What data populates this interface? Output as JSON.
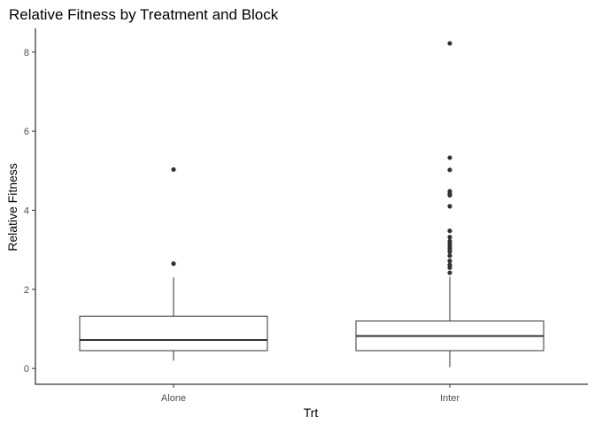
{
  "chart_data": {
    "type": "boxplot",
    "title": "Relative Fitness by Treatment and Block",
    "xlabel": "Trt",
    "ylabel": "Relative Fitness",
    "categories": [
      "Alone",
      "Inter"
    ],
    "yticks": [
      0,
      2,
      4,
      6,
      8
    ],
    "ylim": [
      -0.4,
      8.6
    ],
    "grid": false,
    "boxes": [
      {
        "name": "Alone",
        "whisker_low": 0.2,
        "q1": 0.45,
        "median": 0.72,
        "q3": 1.32,
        "whisker_high": 2.3,
        "outliers": [
          2.65,
          5.03
        ]
      },
      {
        "name": "Inter",
        "whisker_low": 0.03,
        "q1": 0.45,
        "median": 0.82,
        "q3": 1.2,
        "whisker_high": 2.32,
        "outliers": [
          2.42,
          2.55,
          2.62,
          2.72,
          2.85,
          2.95,
          3.02,
          3.08,
          3.15,
          3.22,
          3.32,
          3.48,
          4.1,
          4.38,
          4.42,
          4.48,
          5.02,
          5.33,
          8.22
        ]
      }
    ],
    "colors": {
      "box_line": "#333333",
      "outlier": "#333333",
      "axis": "#000000",
      "tick_text": "#4d4d4d"
    }
  }
}
